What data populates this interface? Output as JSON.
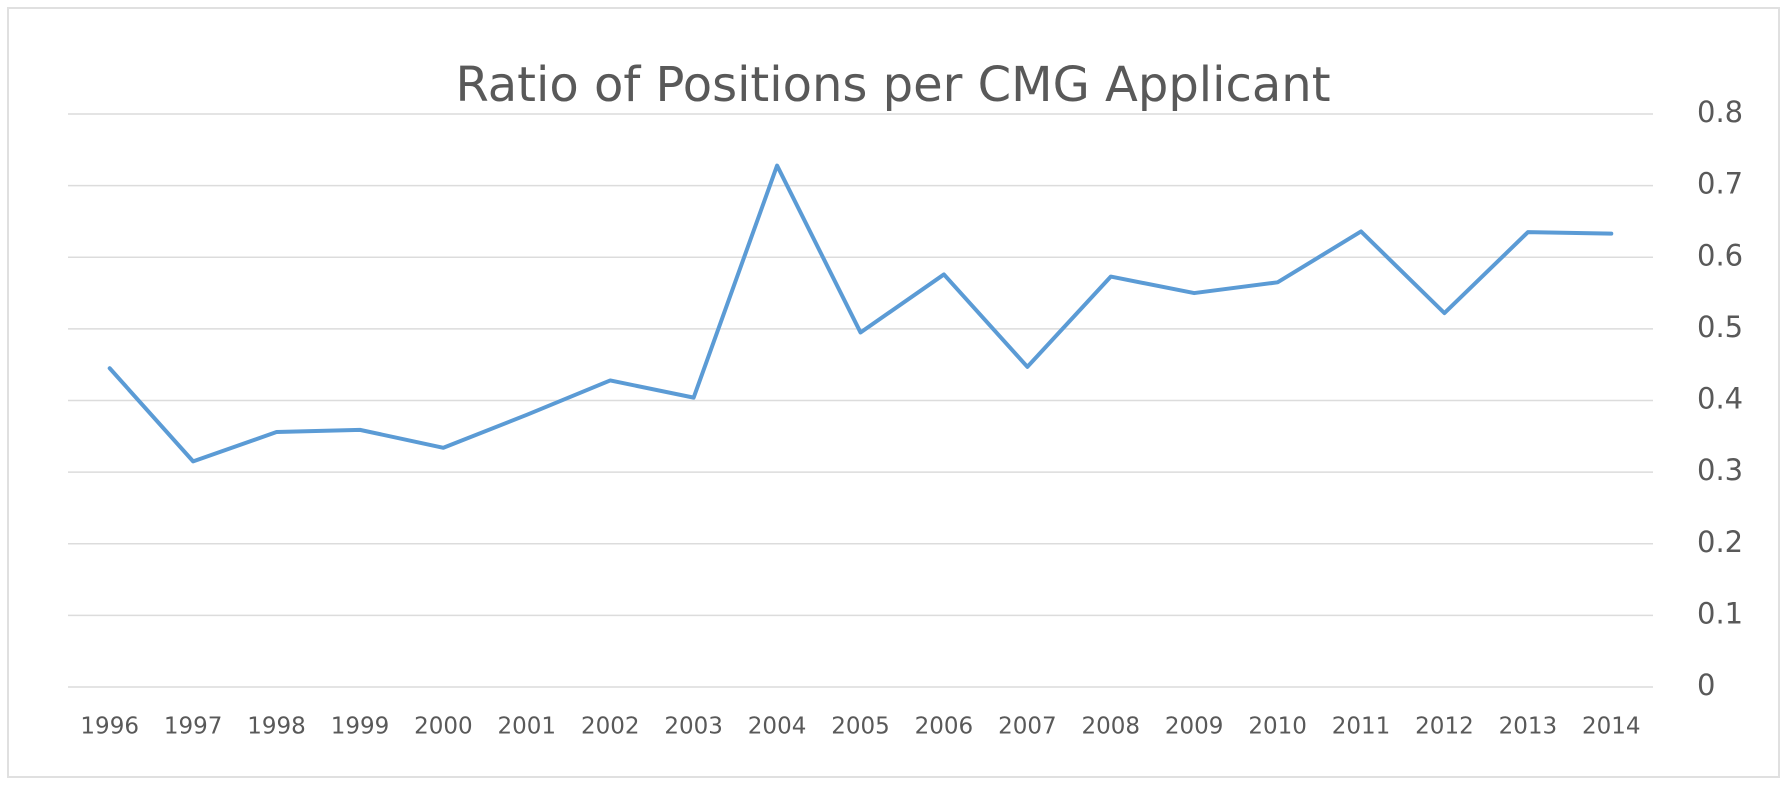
{
  "chart_data": {
    "type": "line",
    "title": "Ratio of Positions per CMG Applicant",
    "categories": [
      "1996",
      "1997",
      "1998",
      "1999",
      "2000",
      "2001",
      "2002",
      "2003",
      "2004",
      "2005",
      "2006",
      "2007",
      "2008",
      "2009",
      "2010",
      "2011",
      "2012",
      "2013",
      "2014"
    ],
    "values": [
      0.445,
      0.315,
      0.356,
      0.359,
      0.334,
      0.38,
      0.428,
      0.404,
      0.728,
      0.495,
      0.576,
      0.447,
      0.573,
      0.55,
      0.565,
      0.636,
      0.522,
      0.635,
      0.633
    ],
    "color": "#5b9bd5",
    "ylim": [
      0,
      0.8
    ],
    "yticks": [
      0,
      0.1,
      0.2,
      0.3,
      0.4,
      0.5,
      0.6,
      0.7,
      0.8
    ],
    "grid": true,
    "yaxis_side": "right"
  }
}
